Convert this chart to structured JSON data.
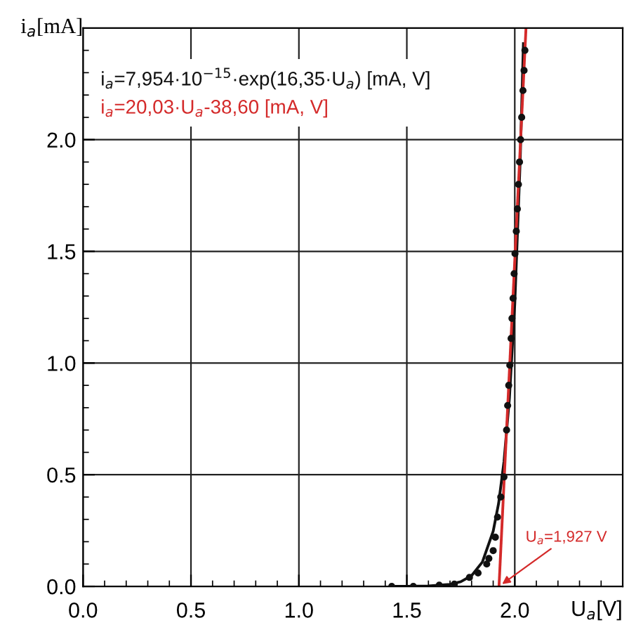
{
  "chart_data": {
    "type": "line",
    "xlabel": "U$_{a}$[V]",
    "ylabel": "i$_{a}$[mA]",
    "xlim": [
      0,
      2.5
    ],
    "ylim": [
      0,
      2.5
    ],
    "xticks": [
      {
        "value": 0,
        "label": "0.0"
      },
      0.5,
      {
        "value": 1,
        "label": "1.0"
      },
      1.5,
      {
        "value": 2,
        "label": "2.0"
      }
    ],
    "yticks": [
      {
        "value": 0,
        "label": "0.0"
      },
      0.5,
      {
        "value": 1,
        "label": "1.0"
      },
      1.5,
      {
        "value": 2,
        "label": "2.0"
      }
    ],
    "grid": true,
    "legend": "top left",
    "series": [
      {
        "type": "scatter",
        "color": "#111111",
        "marker": "circle",
        "x": [
          1.43,
          1.53,
          1.65,
          1.72,
          1.79,
          1.83,
          1.87,
          1.88,
          1.9,
          1.91,
          1.92,
          1.935,
          1.95,
          1.962,
          1.967,
          1.972,
          1.977,
          1.983,
          1.987,
          1.992,
          1.997,
          2.001,
          2.007,
          2.012,
          2.017,
          2.022,
          2.027,
          2.032,
          2.038,
          2.043,
          2.047
        ],
        "values": [
          0.0,
          0.0,
          0.005,
          0.01,
          0.04,
          0.06,
          0.1,
          0.125,
          0.16,
          0.22,
          0.31,
          0.4,
          0.49,
          0.7,
          0.81,
          0.9,
          0.99,
          1.11,
          1.2,
          1.29,
          1.4,
          1.49,
          1.59,
          1.69,
          1.8,
          1.9,
          2.0,
          2.1,
          2.22,
          2.31,
          2.4
        ]
      },
      {
        "name": "i$_{a}$=7,954·10$^{−15}$·exp(16,35·U$_{a}$) [mA, V]",
        "color": "#111111",
        "x": [
          1.45,
          1.5,
          1.6,
          1.7,
          1.75,
          1.8,
          1.85,
          1.9,
          1.925,
          1.95,
          1.975,
          2.0,
          2.025,
          2.04
        ],
        "values": [
          0.0,
          0.0,
          0.002,
          0.009,
          0.021,
          0.048,
          0.109,
          0.247,
          0.371,
          0.558,
          0.84,
          1.265,
          1.904,
          2.43
        ]
      },
      {
        "type": "line",
        "name": "i$_{a}$=20,03·U$_{a}$-38,60 [mA, V]",
        "color": "#d42a2a",
        "x": [
          1.927,
          2.052
        ],
        "values": [
          0,
          2.5
        ]
      }
    ],
    "annotations": [
      {
        "text": "U$_{a}$=1,927 V",
        "x": 1.927,
        "y": 0
      }
    ]
  }
}
